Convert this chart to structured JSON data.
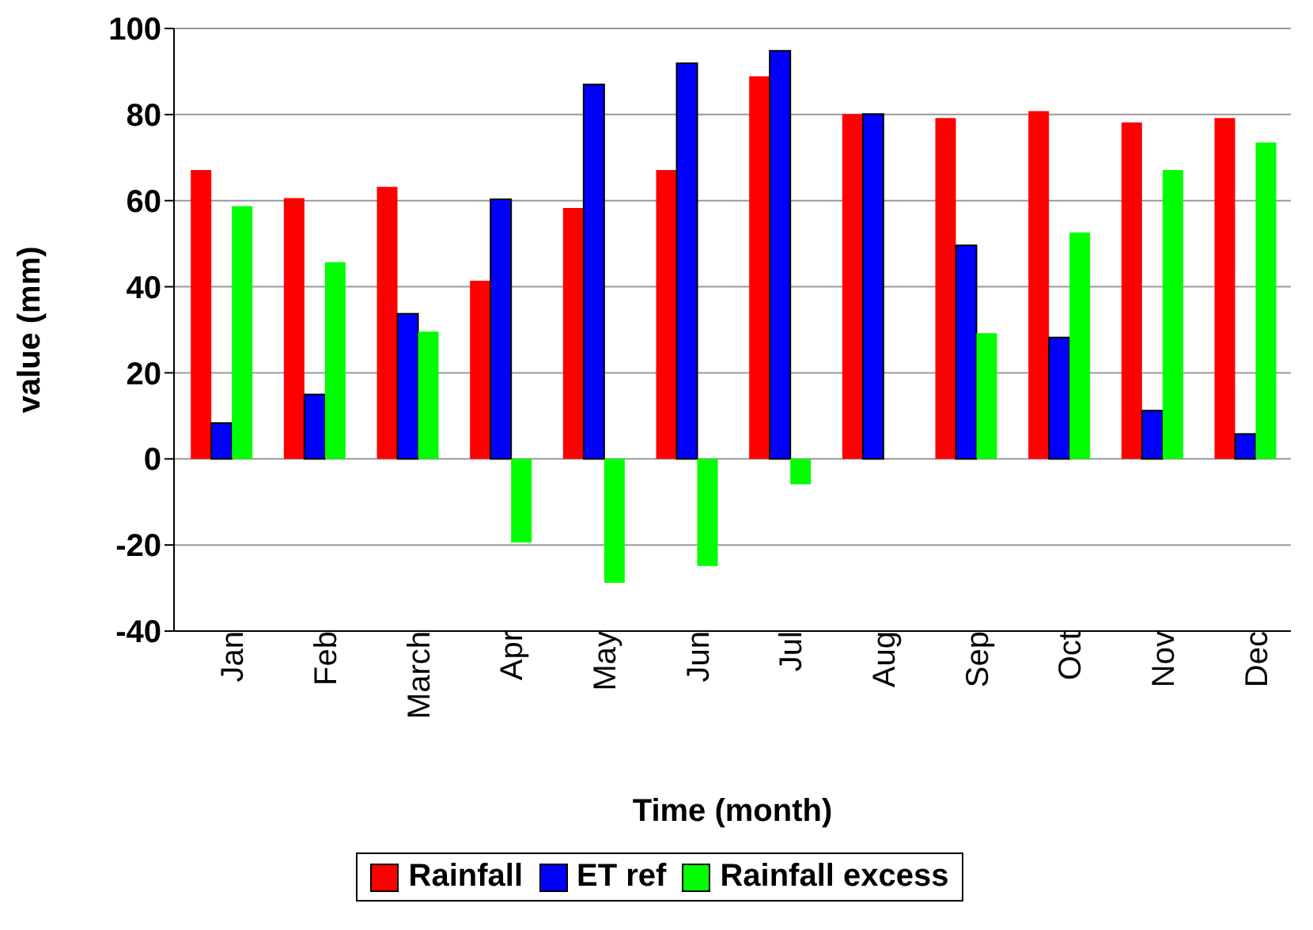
{
  "chart_data": {
    "type": "bar",
    "xlabel": "Time (month)",
    "ylabel": "value (mm)",
    "categories": [
      "Jan",
      "Feb",
      "March",
      "Apr",
      "May",
      "Jun",
      "Jul",
      "Aug",
      "Sep",
      "Oct",
      "Nov",
      "Dec"
    ],
    "series": [
      {
        "name": "Rainfall",
        "color": "#ff0000",
        "values": [
          67.1,
          60.6,
          63.2,
          41.4,
          58.3,
          67.1,
          88.9,
          80.1,
          79.2,
          80.8,
          78.2,
          79.2
        ]
      },
      {
        "name": "ET ref",
        "color": "#0000ff",
        "values": [
          8.3,
          15.0,
          33.7,
          60.3,
          87.0,
          91.9,
          94.8,
          80.1,
          49.6,
          28.2,
          11.2,
          5.8
        ]
      },
      {
        "name": "Rainfall excess",
        "color": "#00ff00",
        "values": [
          58.7,
          45.7,
          29.6,
          -19.4,
          -28.8,
          -24.9,
          -5.9,
          0,
          29.2,
          52.6,
          67.1,
          73.5
        ]
      }
    ],
    "ylim": [
      -40,
      100
    ],
    "yticks": [
      -40,
      -20,
      0,
      20,
      40,
      60,
      80,
      100
    ],
    "grid": "y",
    "legend": "bottom"
  }
}
